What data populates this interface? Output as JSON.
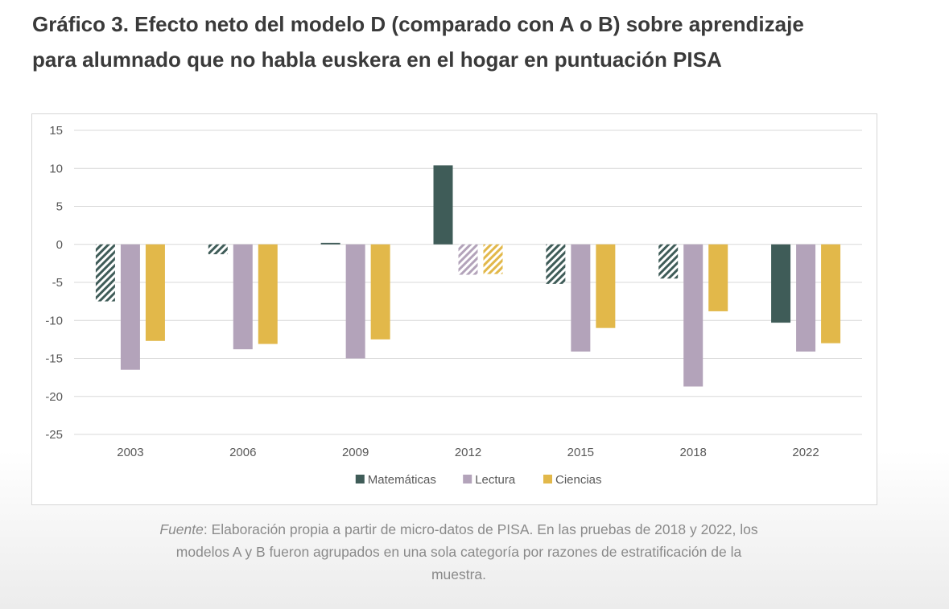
{
  "title": {
    "line1": "Gráfico 3. Efecto neto del modelo D (comparado con A o B) sobre aprendizaje",
    "line2": "para alumnado que no habla euskera en el hogar en puntuación PISA"
  },
  "source": {
    "label": "Fuente",
    "text": ": Elaboración propia a partir de micro-datos de PISA. En las pruebas de 2018 y 2022, los modelos A y B fueron agrupados en una sola categoría por razones de estratificación de la muestra."
  },
  "chart_data": {
    "type": "bar",
    "categories": [
      "2003",
      "2006",
      "2009",
      "2012",
      "2015",
      "2018",
      "2022"
    ],
    "series": [
      {
        "name": "Matemáticas",
        "color": "#3f5c58",
        "values": [
          -7.5,
          -1.3,
          0.2,
          10.4,
          -5.2,
          -4.5,
          -10.3
        ],
        "hatched": [
          true,
          true,
          false,
          false,
          true,
          true,
          false
        ]
      },
      {
        "name": "Lectura",
        "color": "#b3a3ba",
        "values": [
          -16.5,
          -13.8,
          -15.0,
          -4.0,
          -14.1,
          -18.7,
          -14.1
        ],
        "hatched": [
          false,
          false,
          false,
          true,
          false,
          false,
          false
        ]
      },
      {
        "name": "Ciencias",
        "color": "#e2b84a",
        "values": [
          -12.7,
          -13.1,
          -12.5,
          -3.9,
          -11.0,
          -8.8,
          -13.0
        ],
        "hatched": [
          false,
          false,
          false,
          true,
          false,
          false,
          false
        ]
      }
    ],
    "yticks": [
      15,
      10,
      5,
      0,
      -5,
      -10,
      -15,
      -20,
      -25
    ],
    "ylim": [
      -25,
      15
    ],
    "grid": true,
    "legend": "bottom-center",
    "title": "",
    "xlabel": "",
    "ylabel": ""
  }
}
